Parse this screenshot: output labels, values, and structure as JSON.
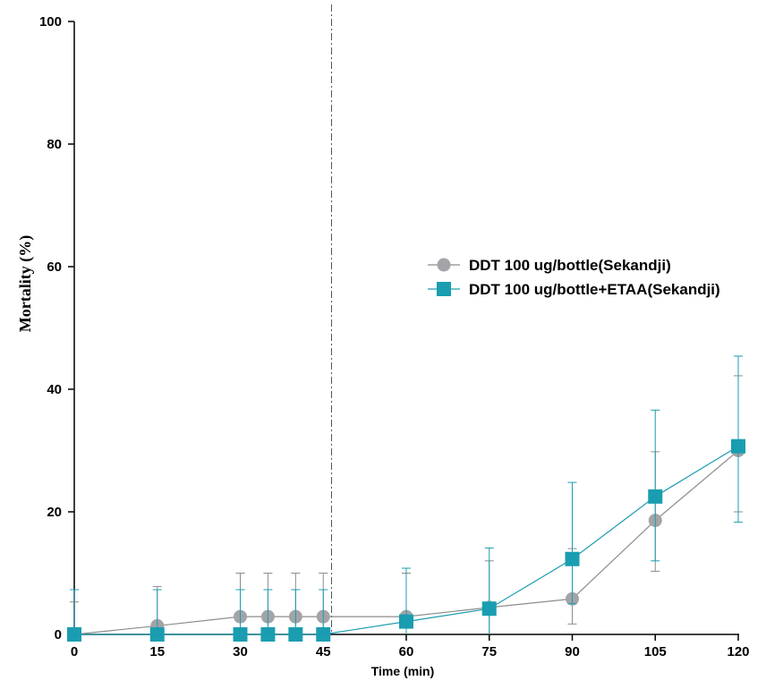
{
  "chart_data": {
    "type": "line",
    "xlabel": "Time (min)",
    "ylabel": "Mortality (%)",
    "xlim": [
      0,
      120
    ],
    "ylim": [
      0,
      100
    ],
    "xticks": [
      0,
      15,
      30,
      45,
      60,
      75,
      90,
      105,
      120
    ],
    "yticks": [
      0,
      20,
      40,
      60,
      80,
      100
    ],
    "grid": false,
    "legend_position": "right-middle",
    "reference_line": {
      "x": 46.5,
      "style": "dash-dot"
    },
    "series": [
      {
        "name": "DDT 100 ug/bottle(Sekandji)",
        "marker": "circle",
        "color": "#a3a3a8",
        "line_color": "#8c8c8c",
        "x": [
          0,
          15,
          30,
          35,
          40,
          45,
          60,
          75,
          90,
          105,
          120
        ],
        "y": [
          0,
          1.4,
          2.9,
          2.9,
          2.9,
          2.9,
          2.9,
          4.4,
          5.8,
          18.6,
          30.0
        ],
        "err_upper": [
          5.3,
          7.8,
          10.0,
          10.0,
          10.0,
          10.0,
          10.0,
          12.0,
          14.0,
          29.8,
          42.2
        ],
        "err_lower": [
          0,
          0,
          0,
          0,
          0,
          0,
          0,
          0,
          1.7,
          10.3,
          20.0
        ]
      },
      {
        "name": "DDT 100 ug/bottle+ETAA(Sekandji)",
        "marker": "square",
        "color": "#1a9db0",
        "line_color": "#1a9db0",
        "x": [
          0,
          15,
          30,
          35,
          40,
          45,
          60,
          75,
          90,
          105,
          120
        ],
        "y": [
          0,
          0,
          0,
          0,
          0,
          0,
          2.1,
          4.2,
          12.3,
          22.5,
          30.7
        ],
        "err_upper": [
          7.3,
          7.3,
          7.3,
          7.3,
          7.3,
          7.3,
          10.8,
          14.1,
          24.8,
          36.6,
          45.4
        ],
        "err_lower": [
          0,
          0,
          0,
          0,
          0,
          0,
          0,
          0,
          5.0,
          12.0,
          18.3
        ]
      }
    ]
  }
}
